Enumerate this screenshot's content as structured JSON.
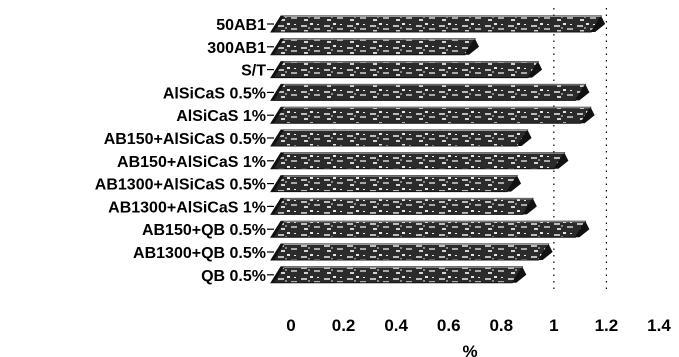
{
  "chart_data": {
    "type": "bar",
    "orientation": "horizontal",
    "categories": [
      "50AB1",
      "300AB1",
      "S/T",
      "AlSiCaS 0.5%",
      "AlSiCaS 1%",
      "AB150+AlSiCaS 0.5%",
      "AB150+AlSiCaS 1%",
      "AB1300+AlSiCaS 0.5%",
      "AB1300+AlSiCaS 1%",
      "AB150+QB 0.5%",
      "AB1300+QB 0.5%",
      "QB 0.5%"
    ],
    "values": [
      1.18,
      0.7,
      0.94,
      1.12,
      1.14,
      0.9,
      1.04,
      0.86,
      0.92,
      1.12,
      0.98,
      0.88
    ],
    "xlabel": "%",
    "ylabel": "",
    "xlim": [
      0,
      1.4
    ],
    "xticks": [
      "0",
      "0.2",
      "0.4",
      "0.6",
      "0.8",
      "1",
      "1.2",
      "1.4"
    ],
    "gridlines_at": [
      1,
      1.2
    ],
    "grid": "dotted vertical lines",
    "legend": "none",
    "style": "3d textured horizontal bars"
  },
  "colors": {
    "bar_fill": "#2b2b2b",
    "bar_texture": "#c8c8c8",
    "bar_side": "#111111",
    "grid": "#000000"
  }
}
